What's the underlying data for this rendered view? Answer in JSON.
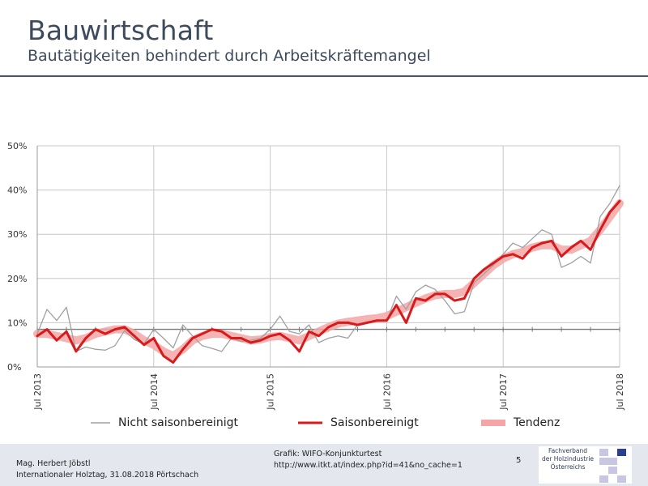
{
  "header": {
    "title": "Bauwirtschaft",
    "subtitle": "Bautätigkeiten behindert durch Arbeitskräftemangel"
  },
  "chart_data": {
    "type": "line",
    "title": "",
    "xlabel": "",
    "ylabel": "",
    "ylim": [
      0,
      50
    ],
    "y_ticks": [
      "0%",
      "10%",
      "20%",
      "30%",
      "40%",
      "50%"
    ],
    "x_ticks": [
      "Jul 2013",
      "Jul 2014",
      "Jul 2015",
      "Jul 2016",
      "Jul 2017",
      "Jul 2018"
    ],
    "grid": true,
    "reference_line": 8.5,
    "legend_position": "bottom",
    "colors": {
      "nicht": "#a0a0a0",
      "saison": "#d91a1a",
      "tendenz": "#f4a6a6",
      "grid": "#c8c8c8",
      "reference": "#7a7a7a"
    },
    "x": [
      "2013-07",
      "2013-08",
      "2013-09",
      "2013-10",
      "2013-11",
      "2013-12",
      "2014-01",
      "2014-02",
      "2014-03",
      "2014-04",
      "2014-05",
      "2014-06",
      "2014-07",
      "2014-08",
      "2014-09",
      "2014-10",
      "2014-11",
      "2014-12",
      "2015-01",
      "2015-02",
      "2015-03",
      "2015-04",
      "2015-05",
      "2015-06",
      "2015-07",
      "2015-08",
      "2015-09",
      "2015-10",
      "2015-11",
      "2015-12",
      "2016-01",
      "2016-02",
      "2016-03",
      "2016-04",
      "2016-05",
      "2016-06",
      "2016-07",
      "2016-08",
      "2016-09",
      "2016-10",
      "2016-11",
      "2016-12",
      "2017-01",
      "2017-02",
      "2017-03",
      "2017-04",
      "2017-05",
      "2017-06",
      "2017-07",
      "2017-08",
      "2017-09",
      "2017-10",
      "2017-11",
      "2017-12",
      "2018-01",
      "2018-02",
      "2018-03",
      "2018-04",
      "2018-05",
      "2018-06",
      "2018-07"
    ],
    "series": [
      {
        "name": "Nicht saisonbereinigt",
        "values": [
          7.5,
          13,
          10.5,
          13.5,
          3.5,
          4.5,
          4,
          3.8,
          4.8,
          8.2,
          6.2,
          5.2,
          8.5,
          6.5,
          4.3,
          9.5,
          7,
          4.8,
          4.2,
          3.5,
          6.5,
          5.8,
          6,
          6.5,
          8.5,
          11.5,
          8,
          7.5,
          9.5,
          5.5,
          6.5,
          7,
          6.5,
          9.5,
          10,
          10.5,
          10.5,
          16,
          13,
          17,
          18.5,
          17.5,
          15,
          12,
          12.5,
          19,
          21,
          23,
          25.5,
          28,
          27,
          29,
          31,
          30,
          22.5,
          23.5,
          25,
          23.5,
          34,
          37,
          41
        ]
      },
      {
        "name": "Saisonbereinigt",
        "values": [
          7,
          8.5,
          6,
          8,
          3.5,
          6.5,
          8.5,
          7.5,
          8.5,
          9,
          7,
          5,
          6.5,
          2.5,
          1,
          4,
          6.5,
          7.5,
          8.5,
          8,
          6.5,
          6.5,
          5.5,
          6,
          7,
          7.5,
          6,
          3.5,
          8,
          7,
          9,
          10,
          10,
          9.5,
          10,
          10.5,
          10.5,
          14,
          10,
          15.5,
          15,
          16.5,
          16.5,
          15,
          15.5,
          20,
          22,
          23.5,
          25,
          25.5,
          24.5,
          27,
          28,
          28.5,
          25,
          27,
          28.5,
          26.5,
          31,
          35,
          37.5
        ]
      },
      {
        "name": "Tendenz",
        "values": [
          7.5,
          7.5,
          7,
          6.5,
          6,
          6.5,
          7.5,
          8,
          8.5,
          8.5,
          7.5,
          6,
          5,
          3.5,
          2.5,
          4,
          6,
          7,
          7.5,
          7.5,
          7,
          6.5,
          6,
          6.2,
          6.8,
          7,
          6.5,
          6,
          7,
          8,
          9,
          9.8,
          10.2,
          10.5,
          10.8,
          11,
          11.5,
          12.5,
          13.5,
          14.5,
          15.5,
          16.2,
          16.5,
          16.5,
          17,
          19,
          21,
          23,
          24.5,
          25.5,
          26,
          27,
          27.5,
          27.5,
          26.5,
          26.5,
          27.5,
          28.5,
          31,
          34,
          37
        ]
      }
    ]
  },
  "legend": {
    "items": [
      "Nicht saisonbereinigt",
      "Saisonbereinigt",
      "Tendenz"
    ]
  },
  "footer": {
    "author_line1": "Mag. Herbert Jöbstl",
    "author_line2": "Internationaler Holztag, 31.08.2018 Pörtschach",
    "source_line1": "Grafik: WIFO-Konjunkturtest",
    "source_line2": "http://www.itkt.at/index.php?id=41&no_cache=1",
    "page_number": "5",
    "logo_line1": "Fachverband",
    "logo_line2": "der Holzindustrie",
    "logo_line3": "Österreichs",
    "logo_accent": "#2b3f8c",
    "logo_block": "#c9c6e3"
  }
}
